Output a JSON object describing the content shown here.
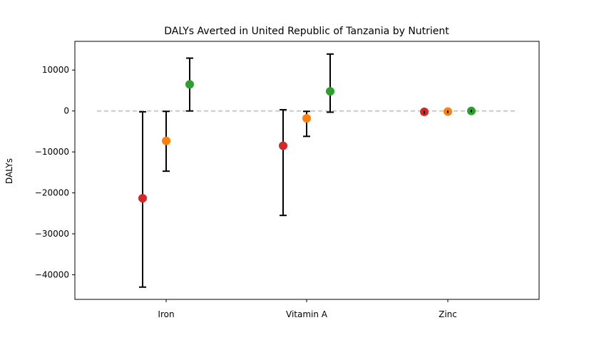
{
  "chart_data": {
    "type": "scatter",
    "title": "DALYs Averted in United Republic of Tanzania by Nutrient",
    "xlabel": "",
    "ylabel": "DALYs",
    "categories": [
      "Iron",
      "Vitamin A",
      "Zinc"
    ],
    "ylim": [
      -46000,
      17000
    ],
    "yticks": [
      -40000,
      -30000,
      -20000,
      -10000,
      0,
      10000
    ],
    "ytick_labels": [
      "−40000",
      "−30000",
      "−20000",
      "−10000",
      "0",
      "10000"
    ],
    "reference_line": {
      "y": 0,
      "style": "dashed",
      "color": "#bfbfbf"
    },
    "grid": false,
    "series": [
      {
        "color": "#d62728",
        "values": [
          -21300,
          -8500,
          -200
        ],
        "lower": [
          -43000,
          -25500,
          -700
        ],
        "upper": [
          -200,
          300,
          100
        ]
      },
      {
        "color": "#ff7f0e",
        "values": [
          -7300,
          -1800,
          -150
        ],
        "lower": [
          -14700,
          -6200,
          -500
        ],
        "upper": [
          -100,
          -100,
          100
        ]
      },
      {
        "color": "#2ca02c",
        "values": [
          6500,
          4800,
          0
        ],
        "lower": [
          0,
          -300,
          -300
        ],
        "upper": [
          12900,
          13900,
          300
        ]
      }
    ]
  }
}
